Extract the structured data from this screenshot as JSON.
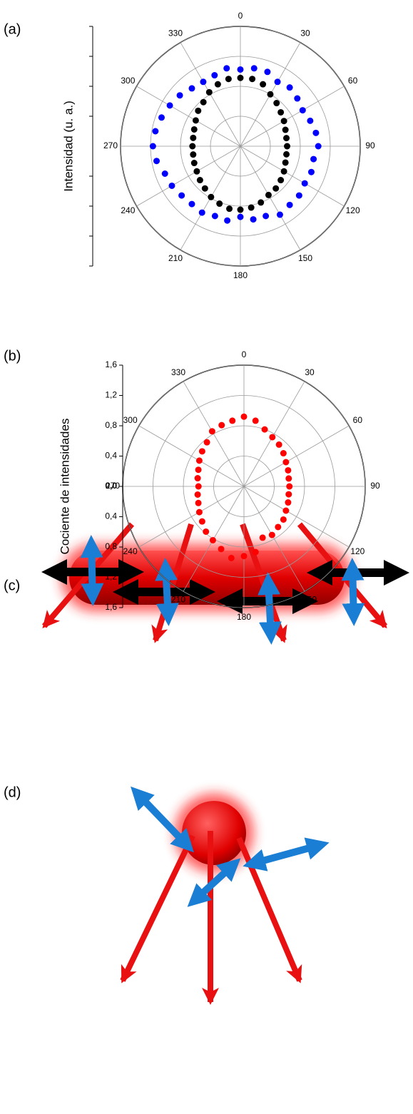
{
  "chart_data": [
    {
      "type": "polar-scatter",
      "label": "(a)",
      "y_label": "Intensidad (u. a.)",
      "theta": [
        0,
        10,
        20,
        30,
        40,
        50,
        60,
        70,
        80,
        90,
        100,
        110,
        120,
        130,
        140,
        150,
        160,
        170,
        180,
        190,
        200,
        210,
        220,
        230,
        240,
        250,
        260,
        270,
        280,
        290,
        300,
        310,
        320,
        330,
        340,
        350
      ],
      "series": [
        {
          "color": "#000000",
          "values": [
            0.57,
            0.57,
            0.55,
            0.5,
            0.47,
            0.44,
            0.42,
            0.4,
            0.39,
            0.39,
            0.39,
            0.4,
            0.42,
            0.44,
            0.46,
            0.47,
            0.5,
            0.52,
            0.53,
            0.53,
            0.51,
            0.49,
            0.46,
            0.44,
            0.42,
            0.41,
            0.4,
            0.4,
            0.4,
            0.41,
            0.43,
            0.46,
            0.48,
            0.52,
            0.55,
            0.57
          ]
        },
        {
          "color": "#0000ff",
          "values": [
            0.64,
            0.66,
            0.66,
            0.62,
            0.64,
            0.62,
            0.6,
            0.62,
            0.64,
            0.65,
            0.62,
            0.63,
            0.62,
            0.64,
            0.64,
            0.66,
            0.62,
            0.62,
            0.59,
            0.63,
            0.62,
            0.64,
            0.63,
            0.64,
            0.66,
            0.67,
            0.71,
            0.73,
            0.72,
            0.7,
            0.68,
            0.66,
            0.63,
            0.62,
            0.63,
            0.66
          ]
        }
      ],
      "rlim": [
        0,
        1
      ],
      "rgrid": [
        0.25,
        0.5,
        0.75,
        1
      ],
      "angle_ticks": [
        0,
        30,
        60,
        90,
        120,
        150,
        180,
        210,
        240,
        270,
        300,
        330
      ]
    },
    {
      "type": "polar-scatter",
      "label": "(b)",
      "y_label": "Cociente de intensidades",
      "theta": [
        0,
        10,
        20,
        30,
        40,
        50,
        60,
        70,
        80,
        90,
        100,
        110,
        120,
        130,
        140,
        150,
        160,
        170,
        180,
        190,
        200,
        210,
        220,
        230,
        240,
        250,
        260,
        270,
        280,
        290,
        300,
        310,
        320,
        330,
        340,
        350
      ],
      "series": [
        {
          "color": "#ff0000",
          "values": [
            0.92,
            0.88,
            0.8,
            0.75,
            0.72,
            0.68,
            0.64,
            0.62,
            0.6,
            0.6,
            0.6,
            0.62,
            0.64,
            0.68,
            0.7,
            0.74,
            0.72,
            0.88,
            0.92,
            0.96,
            0.88,
            0.82,
            0.78,
            0.72,
            0.68,
            0.64,
            0.62,
            0.6,
            0.62,
            0.64,
            0.68,
            0.72,
            0.76,
            0.84,
            0.86,
            0.88
          ]
        }
      ],
      "rlim": [
        0,
        1.6
      ],
      "rticks": [
        {
          "value": 0,
          "label": "0,0"
        },
        {
          "value": 0.4,
          "label": "0,4"
        },
        {
          "value": 0.8,
          "label": "0,8"
        },
        {
          "value": 1.2,
          "label": "1,2"
        },
        {
          "value": 1.6,
          "label": "1,6"
        }
      ],
      "angle_ticks": [
        0,
        30,
        60,
        90,
        120,
        150,
        180,
        210,
        240,
        270,
        300,
        330
      ]
    }
  ],
  "diagrams": [
    {
      "label": "(c)"
    },
    {
      "label": "(d)"
    }
  ]
}
